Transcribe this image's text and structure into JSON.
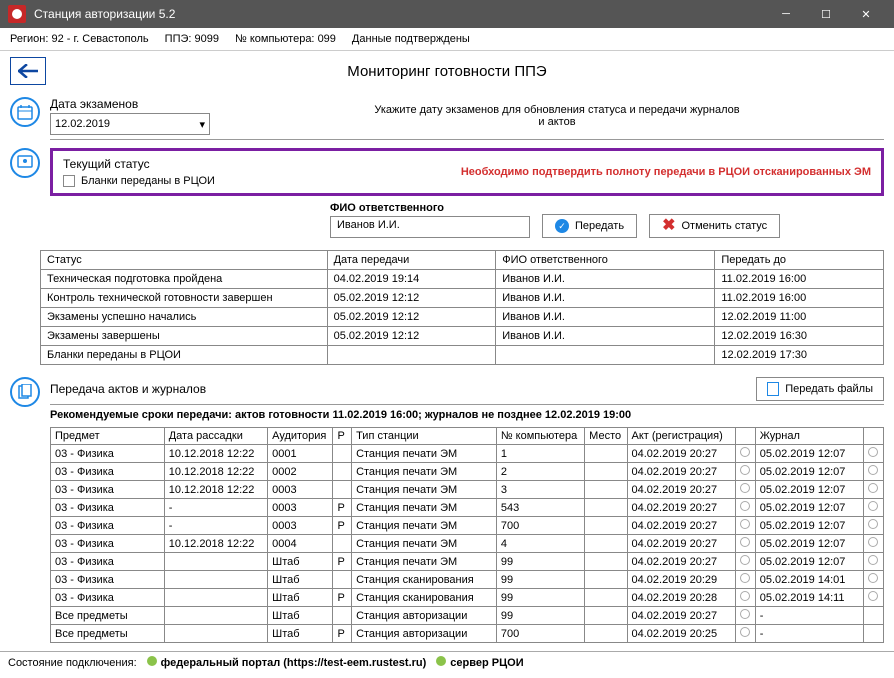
{
  "window": {
    "title": "Станция авторизации 5.2"
  },
  "info": {
    "region_label": "Регион:",
    "region": "92 - г. Севастополь",
    "ppe_label": "ППЭ:",
    "ppe": "9099",
    "comp_label": "№ компьютера:",
    "comp": "099",
    "confirmed": "Данные подтверждены"
  },
  "page_title": "Мониторинг готовности ППЭ",
  "date_section": {
    "label": "Дата экзаменов",
    "value": "12.02.2019",
    "hint_l1": "Укажите дату экзаменов для обновления статуса и передачи журналов",
    "hint_l2": "и актов"
  },
  "status_section": {
    "title": "Текущий статус",
    "chk_label": "Бланки переданы в РЦОИ",
    "warning": "Необходимо подтвердить полноту передачи в РЦОИ отсканированных ЭМ"
  },
  "responsible": {
    "label": "ФИО ответственного",
    "value": "Иванов И.И.",
    "send": "Передать",
    "cancel": "Отменить статус"
  },
  "status_table": {
    "columns": [
      "Статус",
      "Дата передачи",
      "ФИО ответственного",
      "Передать до"
    ],
    "rows": [
      [
        "Техническая подготовка пройдена",
        "04.02.2019 19:14",
        "Иванов И.И.",
        "11.02.2019 16:00"
      ],
      [
        "Контроль технической готовности завершен",
        "05.02.2019 12:12",
        "Иванов И.И.",
        "11.02.2019 16:00"
      ],
      [
        "Экзамены успешно начались",
        "05.02.2019 12:12",
        "Иванов И.И.",
        "12.02.2019 11:00"
      ],
      [
        "Экзамены завершены",
        "05.02.2019 12:12",
        "Иванов И.И.",
        "12.02.2019 16:30"
      ],
      [
        "Бланки переданы в РЦОИ",
        "",
        "",
        "12.02.2019 17:30"
      ]
    ]
  },
  "journals": {
    "title": "Передача актов и журналов",
    "btn": "Передать файлы",
    "recommended": "Рекомендуемые сроки передачи: актов готовности 11.02.2019 16:00; журналов не позднее 12.02.2019 19:00",
    "columns": [
      "Предмет",
      "Дата рассадки",
      "Аудитория",
      "Р",
      "Тип станции",
      "№ компьютера",
      "Место",
      "Акт (регистрация)",
      "",
      "Журнал",
      ""
    ],
    "rows": [
      [
        "03 - Физика",
        "10.12.2018 12:22",
        "0001",
        "",
        "Станция печати ЭМ",
        "1",
        "",
        "04.02.2019 20:27",
        "o",
        "05.02.2019 12:07",
        "o"
      ],
      [
        "03 - Физика",
        "10.12.2018 12:22",
        "0002",
        "",
        "Станция печати ЭМ",
        "2",
        "",
        "04.02.2019 20:27",
        "o",
        "05.02.2019 12:07",
        "o"
      ],
      [
        "03 - Физика",
        "10.12.2018 12:22",
        "0003",
        "",
        "Станция печати ЭМ",
        "3",
        "",
        "04.02.2019 20:27",
        "o",
        "05.02.2019 12:07",
        "o"
      ],
      [
        "03 - Физика",
        "-",
        "0003",
        "Р",
        "Станция печати ЭМ",
        "543",
        "",
        "04.02.2019 20:27",
        "o",
        "05.02.2019 12:07",
        "o"
      ],
      [
        "03 - Физика",
        "-",
        "0003",
        "Р",
        "Станция печати ЭМ",
        "700",
        "",
        "04.02.2019 20:27",
        "o",
        "05.02.2019 12:07",
        "o"
      ],
      [
        "03 - Физика",
        "10.12.2018 12:22",
        "0004",
        "",
        "Станция печати ЭМ",
        "4",
        "",
        "04.02.2019 20:27",
        "o",
        "05.02.2019 12:07",
        "o"
      ],
      [
        "03 - Физика",
        "",
        "Штаб",
        "Р",
        "Станция печати ЭМ",
        "99",
        "",
        "04.02.2019 20:27",
        "o",
        "05.02.2019 12:07",
        "o"
      ],
      [
        "03 - Физика",
        "",
        "Штаб",
        "",
        "Станция сканирования",
        "99",
        "",
        "04.02.2019 20:29",
        "o",
        "05.02.2019 14:01",
        "o"
      ],
      [
        "03 - Физика",
        "",
        "Штаб",
        "Р",
        "Станция сканирования",
        "99",
        "",
        "04.02.2019 20:28",
        "o",
        "05.02.2019 14:11",
        "o"
      ],
      [
        "Все предметы",
        "",
        "Штаб",
        "",
        "Станция авторизации",
        "99",
        "",
        "04.02.2019 20:27",
        "o",
        "-",
        ""
      ],
      [
        "Все предметы",
        "",
        "Штаб",
        "Р",
        "Станция авторизации",
        "700",
        "",
        "04.02.2019 20:25",
        "o",
        "-",
        ""
      ]
    ]
  },
  "footer": {
    "conn": "Состояние подключения:",
    "portal": "федеральный портал (https://test-eem.rustest.ru)",
    "server": "сервер РЦОИ"
  }
}
